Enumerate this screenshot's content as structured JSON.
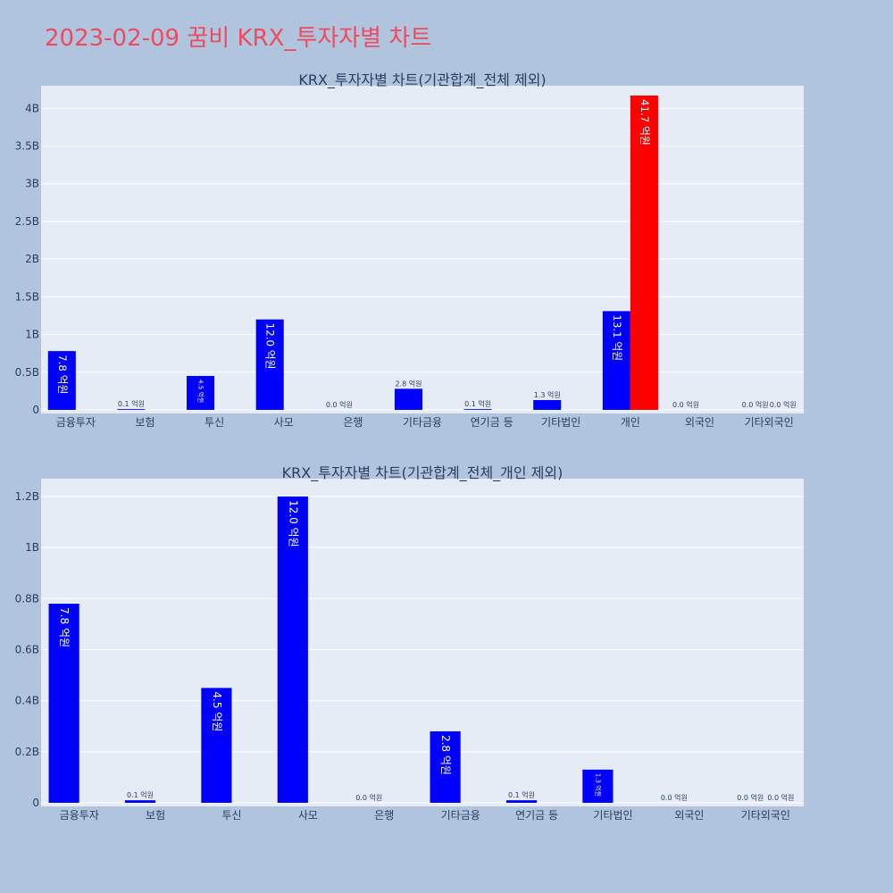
{
  "page_title": "2023-02-09 꿈비 KRX_투자자별 차트",
  "chart_data": [
    {
      "type": "bar",
      "title": "KRX_투자자별 차트(기관합계_전체 제외)",
      "xlabel": "",
      "ylabel": "",
      "ylim": [
        0,
        4300000000
      ],
      "yticks": [
        0,
        500000000,
        1000000000,
        1500000000,
        2000000000,
        2500000000,
        3000000000,
        3500000000,
        4000000000
      ],
      "ytick_labels": [
        "0",
        "0.5B",
        "1B",
        "1.5B",
        "2B",
        "2.5B",
        "3B",
        "3.5B",
        "4B"
      ],
      "categories": [
        "금융투자",
        "보험",
        "투신",
        "사모",
        "은행",
        "기타금융",
        "연기금 등",
        "기타법인",
        "개인",
        "외국인",
        "기타외국인"
      ],
      "series": [
        {
          "color": "#0000ff",
          "values": [
            780000000,
            10000000,
            450000000,
            1200000000,
            0,
            280000000,
            10000000,
            130000000,
            1310000000,
            0,
            0
          ],
          "labels": [
            "7.8 억원",
            "0.1 억원",
            "4.5 억원",
            "12.0 억원",
            "0.0 억원",
            "2.8 억원",
            "0.1 억원",
            "1.3 억원",
            "13.1 억원",
            "0.0 억원",
            "0.0 억원"
          ]
        },
        {
          "color": "#ff0000",
          "values": [
            0,
            0,
            0,
            0,
            0,
            0,
            0,
            0,
            4170000000,
            0,
            0
          ],
          "labels": [
            "",
            "",
            "",
            "",
            "",
            "",
            "",
            "",
            "41.7 억원",
            "",
            "0.0 억원"
          ]
        }
      ],
      "grid": true,
      "legend": "none"
    },
    {
      "type": "bar",
      "title": "KRX_투자자별 차트(기관합계_전체_개인 제외)",
      "xlabel": "",
      "ylabel": "",
      "ylim": [
        0,
        1270000000
      ],
      "yticks": [
        0,
        200000000,
        400000000,
        600000000,
        800000000,
        1000000000,
        1200000000
      ],
      "ytick_labels": [
        "0",
        "0.2B",
        "0.4B",
        "0.6B",
        "0.8B",
        "1B",
        "1.2B"
      ],
      "categories": [
        "금융투자",
        "보험",
        "투신",
        "사모",
        "은행",
        "기타금융",
        "연기금 등",
        "기타법인",
        "외국인",
        "기타외국인"
      ],
      "series": [
        {
          "color": "#0000ff",
          "values": [
            780000000,
            10000000,
            450000000,
            1200000000,
            0,
            280000000,
            10000000,
            130000000,
            0,
            0
          ],
          "labels": [
            "7.8 억원",
            "0.1 억원",
            "4.5 억원",
            "12.0 억원",
            "0.0 억원",
            "2.8 억원",
            "0.1 억원",
            "1.3 억원",
            "0.0 억원",
            "0.0 억원"
          ]
        },
        {
          "color": "#ff0000",
          "values": [
            0,
            0,
            0,
            0,
            0,
            0,
            0,
            0,
            0,
            0
          ],
          "labels": [
            "",
            "",
            "",
            "",
            "",
            "",
            "",
            "",
            "",
            "0.0 억원"
          ]
        }
      ],
      "grid": true,
      "legend": "none"
    }
  ]
}
